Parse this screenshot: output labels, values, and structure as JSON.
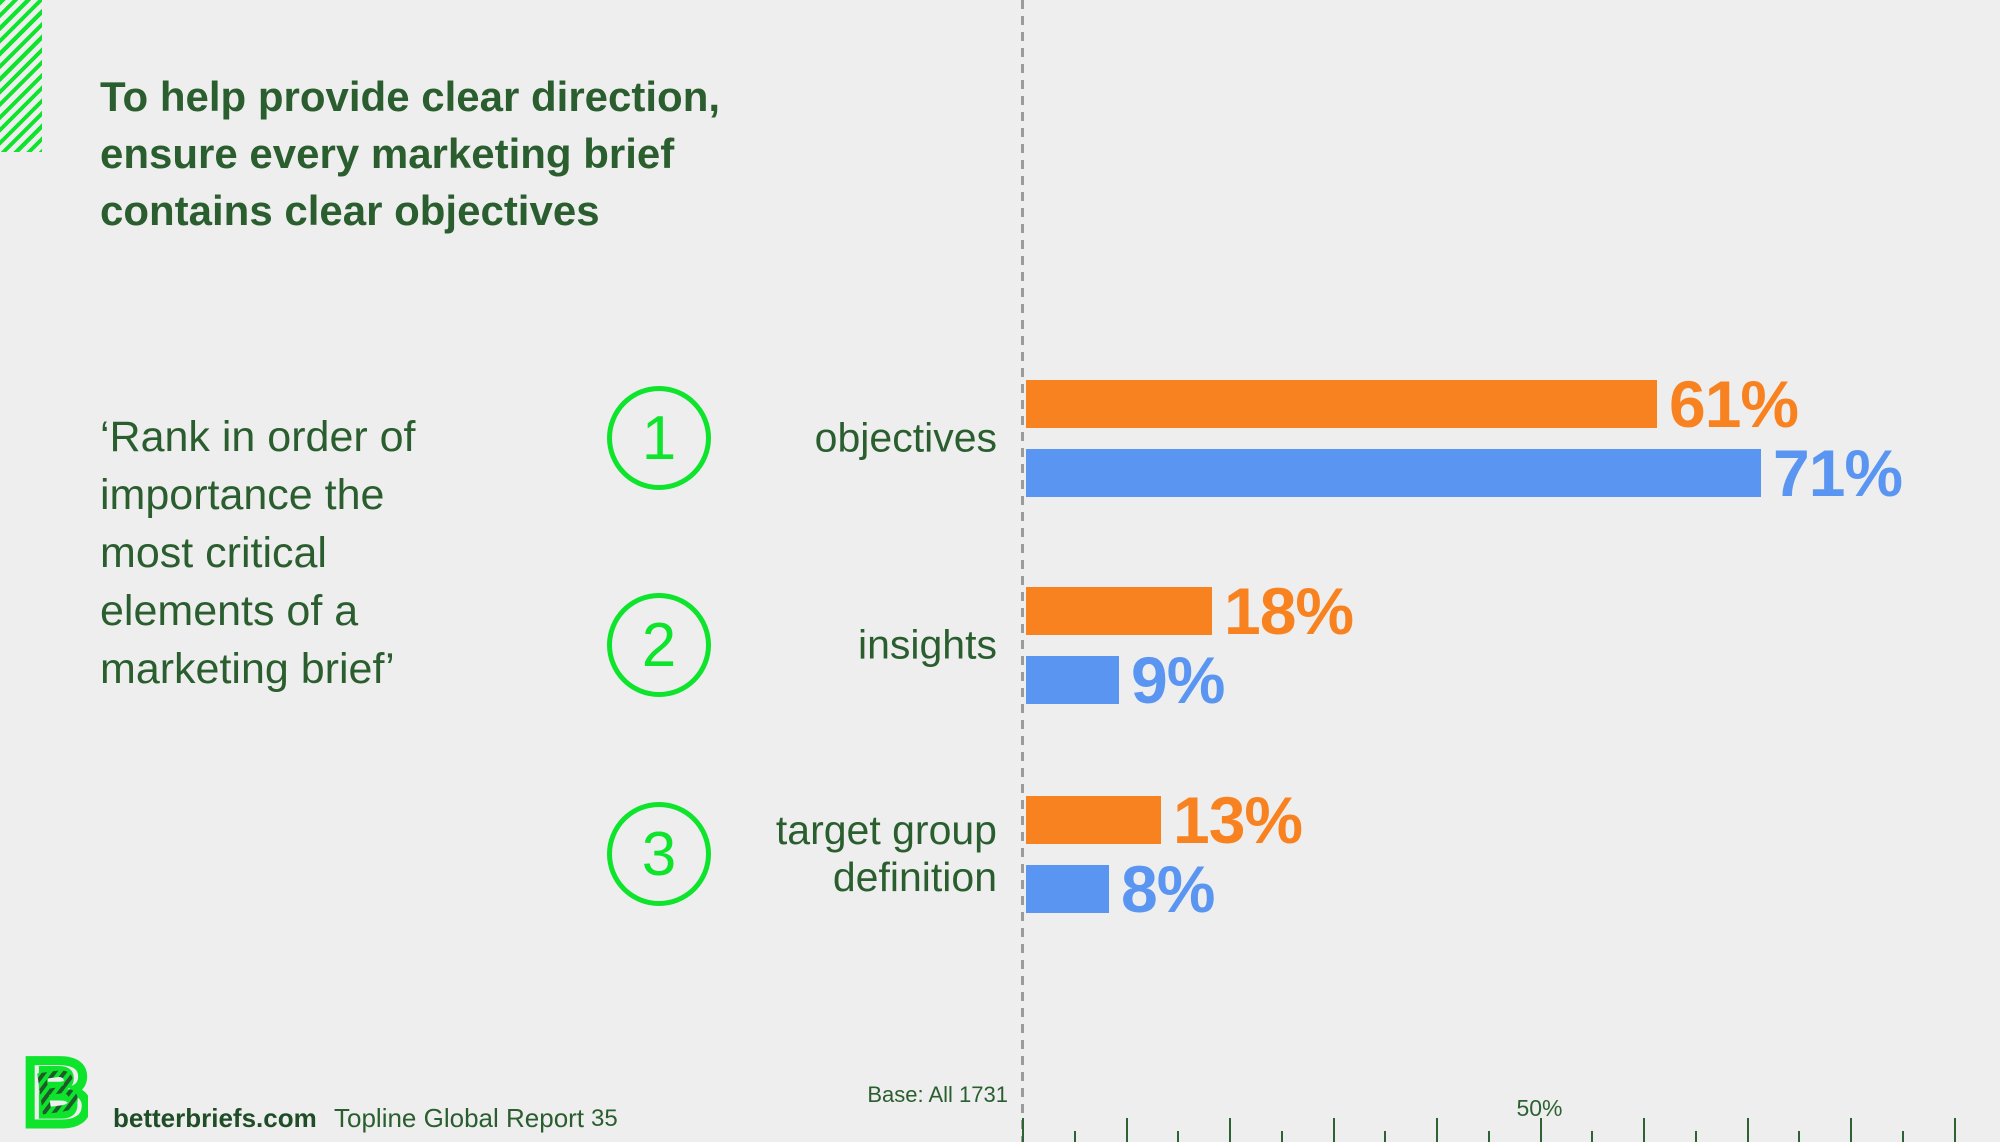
{
  "slide": {
    "title_lines": [
      "To help provide clear direction,",
      "ensure every marketing brief",
      "contains clear objectives"
    ],
    "quote_lines": [
      "‘Rank in order of",
      "importance the",
      "most critical",
      "elements of a",
      "marketing brief’"
    ]
  },
  "chart_data": {
    "type": "bar",
    "orientation": "horizontal",
    "question": "‘Rank in order of importance the most critical elements of a marketing brief’",
    "base_note": "Base: All 1731",
    "value_suffix": "%",
    "categories": [
      {
        "rank": "1",
        "label": "objectives",
        "label_lines": [
          "objectives"
        ]
      },
      {
        "rank": "2",
        "label": "insights",
        "label_lines": [
          "insights"
        ]
      },
      {
        "rank": "3",
        "label": "target group definition",
        "label_lines": [
          "target group",
          "definition"
        ]
      }
    ],
    "series": [
      {
        "name": "orange-series",
        "color": "#F8821F",
        "values": [
          61,
          18,
          13
        ]
      },
      {
        "name": "blue-series",
        "color": "#5A96F1",
        "values": [
          71,
          9,
          8
        ]
      }
    ],
    "axis": {
      "min": 0,
      "max_tick": 95,
      "major_step": 10,
      "minor_step": 5,
      "labeled_value": 50,
      "labeled_text": "50%"
    }
  },
  "footer": {
    "site": "betterbriefs.com",
    "report": "Topline Global Report",
    "page": "35"
  },
  "colors": {
    "background": "#EEEEEE",
    "dark_green": "#2A5E2F",
    "bright_green": "#0DE42B",
    "orange": "#F8821F",
    "blue": "#5A96F1",
    "dash_gray": "#9B9B9B"
  }
}
